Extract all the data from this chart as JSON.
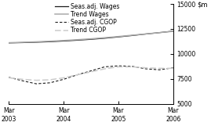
{
  "title": "",
  "ylim": [
    5000,
    15000
  ],
  "yticks": [
    5000,
    7500,
    10000,
    12500,
    15000
  ],
  "xlim": [
    0,
    12
  ],
  "xtick_positions": [
    0,
    4,
    8,
    12
  ],
  "xtick_labels": [
    "Mar\n2003",
    "Mar\n2004",
    "Mar\n2005",
    "Mar\n2006"
  ],
  "seas_wages": [
    11100,
    11130,
    11170,
    11220,
    11290,
    11370,
    11460,
    11570,
    11700,
    11840,
    11990,
    12130,
    12280
  ],
  "trend_wages": [
    11120,
    11160,
    11210,
    11270,
    11340,
    11420,
    11510,
    11620,
    11740,
    11870,
    12000,
    12130,
    12260
  ],
  "seas_cgop": [
    7650,
    7300,
    7000,
    7100,
    7450,
    7900,
    8300,
    8700,
    8800,
    8750,
    8500,
    8400,
    8600
  ],
  "trend_cgop": [
    7600,
    7450,
    7350,
    7400,
    7600,
    7900,
    8200,
    8500,
    8700,
    8700,
    8600,
    8550,
    8550
  ],
  "color_black": "#1a1a1a",
  "color_gray": "#aaaaaa",
  "color_lgray": "#cccccc",
  "legend_fontsize": 5.5,
  "axis_fontsize": 6,
  "tick_fontsize": 5.5
}
